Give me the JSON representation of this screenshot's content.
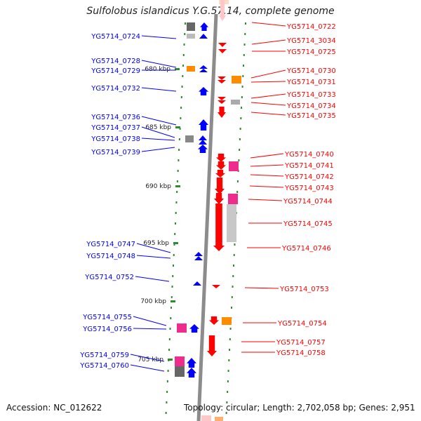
{
  "title": "Sulfolobus islandicus Y.G.57.14, complete genome",
  "accession": "Accession: NC_012622",
  "topology": "Topology: circular; Length: 2,702,058 bp; Genes: 2,951",
  "colors": {
    "forward_gene": "#0000ff",
    "reverse_gene": "#ff0000",
    "gc_tick": "#2e8b2e",
    "backbone": "#8c8c8c",
    "magenta_feature": "#ee2c8c",
    "orange_feature": "#ff8c00",
    "gray_feature": "#a0a0a0"
  },
  "ruler": [
    "680 kbp",
    "685 kbp",
    "690 kbp",
    "695 kbp",
    "700 kbp",
    "705 kbp"
  ],
  "left_labels": [
    "YG5714_0724",
    "YG5714_0728",
    "YG5714_0729",
    "YG5714_0732",
    "YG5714_0736",
    "YG5714_0737",
    "YG5714_0738",
    "YG5714_0739",
    "YG5714_0747",
    "YG5714_0748",
    "YG5714_0752",
    "YG5714_0755",
    "YG5714_0756",
    "YG5714_0759",
    "YG5714_0760"
  ],
  "right_labels": [
    "YG5714_0722",
    "YG5714_3034",
    "YG5714_0725",
    "YG5714_0730",
    "YG5714_0731",
    "YG5714_0733",
    "YG5714_0734",
    "YG5714_0735",
    "YG5714_0740",
    "YG5714_0741",
    "YG5714_0742",
    "YG5714_0743",
    "YG5714_0744",
    "YG5714_0745",
    "YG5714_0746",
    "YG5714_0753",
    "YG5714_0754",
    "YG5714_0757",
    "YG5714_0758"
  ]
}
